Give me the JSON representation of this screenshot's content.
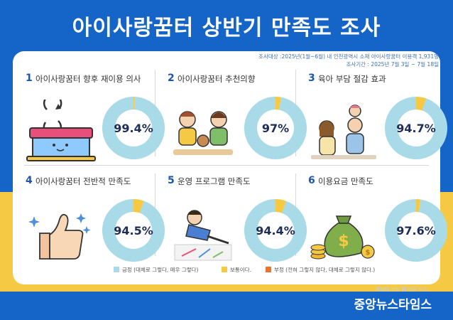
{
  "title": "아이사랑꿈터 상반기 만족도 조사",
  "meta": {
    "target": "조사대상 :2025년(1월~6월) 내 인천광역시 소재  아이사랑꿈터 이용객 1,931명",
    "period": "조사기간 : 2025년 7월 3일 ~ 7월 18일"
  },
  "legend": [
    {
      "label": "긍정 (대체로 그렇다, 매우 그렇다)",
      "color": "#a8dbe7"
    },
    {
      "label": "보통이다.",
      "color": "#f6c945"
    },
    {
      "label": "부정 (전혀 그렇지 않다, 대체로 그렇지 않다.)",
      "color": "#e8742f"
    }
  ],
  "footer": {
    "tagline": "세상을 보는 밝 바른 뉴스",
    "brand": "중앙뉴스타임스"
  },
  "chart_data": [
    {
      "type": "pie",
      "number": "1",
      "title": "아이사랑꿈터 향후 재이용 의사",
      "label": "99.4%",
      "values": {
        "positive": 99.4,
        "neutral": 0.6,
        "negative": 0
      }
    },
    {
      "type": "pie",
      "number": "2",
      "title": "아이사랑꿈터 추천의향",
      "label": "97%",
      "values": {
        "positive": 97,
        "neutral": 3,
        "negative": 0
      }
    },
    {
      "type": "pie",
      "number": "3",
      "title": "육아 부담 절감 효과",
      "label": "94.7%",
      "values": {
        "positive": 94.7,
        "neutral": 5.3,
        "negative": 0
      }
    },
    {
      "type": "pie",
      "number": "4",
      "title": "아이사랑꿈터 전반적 만족도",
      "label": "94.5%",
      "values": {
        "positive": 94.5,
        "neutral": 5.5,
        "negative": 0
      }
    },
    {
      "type": "pie",
      "number": "5",
      "title": "운영 프로그램 만족도",
      "label": "94.4%",
      "values": {
        "positive": 94.4,
        "neutral": 5.6,
        "negative": 0
      }
    },
    {
      "type": "pie",
      "number": "6",
      "title": "이용요금 만족도",
      "label": "97.6%",
      "values": {
        "positive": 97.6,
        "neutral": 2.4,
        "negative": 0
      }
    }
  ],
  "colors": {
    "positive": "#a8dbe7",
    "neutral": "#f6c945",
    "negative": "#e8742f",
    "value_text": "#1d2d5a"
  }
}
